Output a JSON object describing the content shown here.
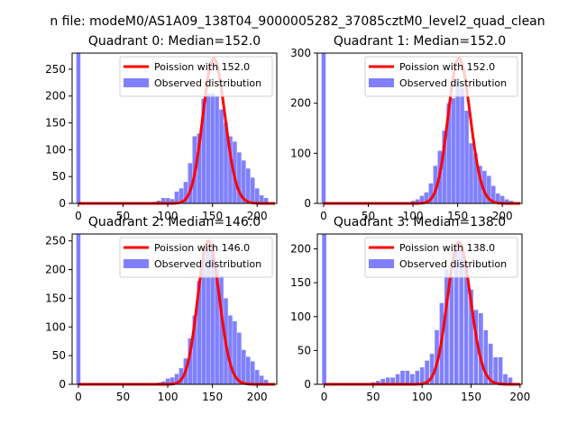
{
  "figure_title": "n file: modeM0/AS1A09_138T04_9000005282_37085cztM0_level2_quad_clean",
  "colors": {
    "hist": "#8080ff",
    "fit": "#ff0000"
  },
  "chart_data": [
    {
      "type": "bar",
      "title": "Quadrant 0: Median=152.0",
      "xlim": [
        -7,
        222
      ],
      "ylim": [
        0,
        280
      ],
      "xticks": [
        0,
        50,
        100,
        150,
        200
      ],
      "yticks": [
        0,
        50,
        100,
        150,
        200,
        250
      ],
      "bin_width": 4.6,
      "hist": {
        "name": "Observed distribution",
        "x": [
          0,
          85,
          90,
          95,
          100,
          105,
          110,
          115,
          120,
          125,
          130,
          135,
          140,
          145,
          150,
          155,
          160,
          165,
          170,
          175,
          180,
          185,
          190,
          195,
          200,
          205,
          210
        ],
        "values": [
          280,
          3,
          5,
          10,
          10,
          8,
          22,
          28,
          40,
          75,
          125,
          130,
          195,
          205,
          205,
          200,
          175,
          150,
          125,
          115,
          95,
          80,
          65,
          48,
          28,
          15,
          10
        ]
      },
      "fit": {
        "name": "Poission with 152.0",
        "x": [
          0,
          220
        ],
        "mean": 152.0,
        "peak": 270
      },
      "legend": "top-right"
    },
    {
      "type": "bar",
      "title": "Quadrant 1: Median=152.0",
      "xlim": [
        -7,
        222
      ],
      "ylim": [
        0,
        300
      ],
      "xticks": [
        0,
        50,
        100,
        150,
        200
      ],
      "yticks": [
        0,
        100,
        200,
        300
      ],
      "bin_width": 4.6,
      "hist": {
        "name": "Observed distribution",
        "x": [
          0,
          100,
          105,
          110,
          115,
          120,
          125,
          130,
          135,
          140,
          145,
          150,
          155,
          160,
          165,
          170,
          175,
          180,
          185,
          190,
          195,
          200,
          205,
          210
        ],
        "values": [
          300,
          5,
          8,
          15,
          22,
          40,
          75,
          105,
          145,
          200,
          210,
          250,
          230,
          185,
          120,
          100,
          75,
          65,
          55,
          35,
          20,
          15,
          8,
          5
        ]
      },
      "fit": {
        "name": "Poission with 152.0",
        "x": [
          0,
          220
        ],
        "mean": 152.0,
        "peak": 290
      },
      "legend": "top-right"
    },
    {
      "type": "bar",
      "title": "Quadrant 2: Median=146.0",
      "xlim": [
        -7,
        222
      ],
      "ylim": [
        0,
        262
      ],
      "xticks": [
        0,
        50,
        100,
        150,
        200
      ],
      "yticks": [
        0,
        50,
        100,
        150,
        200,
        250
      ],
      "bin_width": 4.6,
      "hist": {
        "name": "Observed distribution",
        "x": [
          0,
          85,
          90,
          95,
          100,
          105,
          110,
          115,
          120,
          125,
          130,
          135,
          140,
          145,
          150,
          155,
          160,
          165,
          170,
          175,
          180,
          185,
          190,
          195,
          200,
          205,
          210
        ],
        "values": [
          262,
          2,
          3,
          5,
          10,
          12,
          18,
          28,
          45,
          80,
          120,
          180,
          220,
          235,
          245,
          200,
          190,
          150,
          120,
          110,
          90,
          60,
          48,
          40,
          25,
          15,
          8
        ]
      },
      "fit": {
        "name": "Poission with 146.0",
        "x": [
          0,
          220
        ],
        "mean": 146.0,
        "peak": 250
      },
      "legend": "top-right"
    },
    {
      "type": "bar",
      "title": "Quadrant 3: Median=138.0",
      "xlim": [
        -7,
        202
      ],
      "ylim": [
        0,
        222
      ],
      "xticks": [
        0,
        50,
        100,
        150,
        200
      ],
      "yticks": [
        0,
        50,
        100,
        150,
        200
      ],
      "bin_width": 4.3,
      "hist": {
        "name": "Observed distribution",
        "x": [
          0,
          45,
          50,
          55,
          60,
          65,
          70,
          75,
          80,
          85,
          90,
          95,
          100,
          105,
          110,
          115,
          120,
          125,
          130,
          135,
          140,
          145,
          150,
          155,
          160,
          165,
          170,
          175,
          180,
          185,
          190
        ],
        "values": [
          222,
          2,
          3,
          5,
          8,
          10,
          10,
          15,
          20,
          20,
          15,
          20,
          25,
          35,
          45,
          80,
          120,
          170,
          160,
          200,
          200,
          175,
          140,
          110,
          105,
          80,
          60,
          40,
          40,
          15,
          10
        ]
      },
      "fit": {
        "name": "Poission with 138.0",
        "x": [
          0,
          200
        ],
        "mean": 138.0,
        "peak": 210
      },
      "legend": "top-right"
    }
  ]
}
